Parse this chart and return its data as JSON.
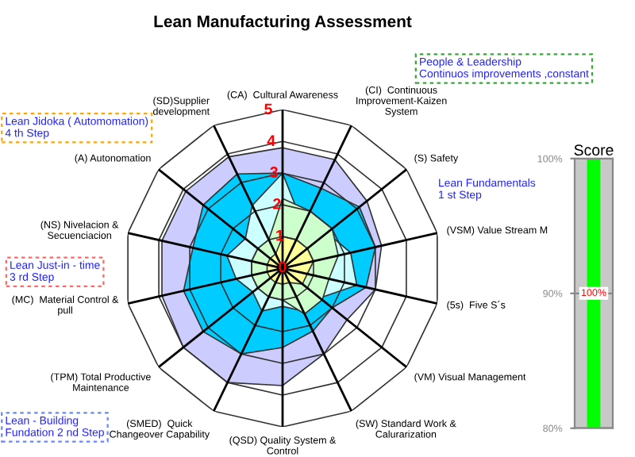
{
  "chart_data": [
    {
      "type": "radar",
      "title": "Lean Manufacturing Assessment",
      "categories": [
        "(CA)  Cultural Awareness",
        "(CI)  Continuous\nImprovement-Kaizen\nSystem",
        "(S) Safety",
        "(VSM) Value Stream M",
        "(5s)  Five S´s",
        "(VM) Visual Management",
        "(SW) Standard Work &\nCalurarization",
        "(QSD) Quality System &\nControl",
        "(SMED)  Quick\nChangeover Capability",
        "(TPM) Total Productive\nMaintenance",
        "(MC)  Material Control &\npull",
        "(NS) Nivelacion &\nSecuenciacion",
        "(A) Autonomation",
        "(SD)Supplier\ndevelopment"
      ],
      "series": [
        {
          "color": "#ccccff",
          "values": [
            3.8,
            3.8,
            3.4,
            3.2,
            3.0,
            2.6,
            3.0,
            3.7,
            4.0,
            4.0,
            3.9,
            3.9,
            3.9,
            3.9
          ]
        },
        {
          "color": "#00ccff",
          "values": [
            3.0,
            2.8,
            3.1,
            3.0,
            2.7,
            2.0,
            2.2,
            2.5,
            3.0,
            3.2,
            3.2,
            2.9,
            3.2,
            3.3
          ]
        },
        {
          "color": "#ccffff",
          "values": [
            3.0,
            1.5,
            1.8,
            2.2,
            2.4,
            1.5,
            1.5,
            1.2,
            1.5,
            1.2,
            1.5,
            1.8,
            1.5,
            2.2
          ]
        },
        {
          "color": "#ccffcc",
          "values": [
            2.2,
            2.0,
            2.0,
            1.8,
            1.5,
            1.6,
            1.6,
            1.0,
            1.0,
            1.0,
            1.0,
            1.0,
            1.0,
            1.0
          ]
        },
        {
          "color": "#ffff99",
          "values": [
            1.0,
            1.0,
            1.0,
            1.0,
            0.8,
            0.8,
            0.5,
            0.5,
            0.5,
            0.5,
            0.5,
            0.5,
            0.5,
            0.5
          ]
        }
      ],
      "ylim": [
        0,
        5
      ],
      "yticks": [
        0,
        1,
        2,
        3,
        4,
        5
      ],
      "grid": true,
      "legend": false,
      "annotations": [
        "People & Leadership\nContinuos improvements ,constant",
        "Lean Fundamentals\n1 st Step",
        "Lean Jidoka ( Automomation)\n4 th Step",
        "Lean Just-in - time\n3 rd Step",
        "Lean - Building\nFundation 2 nd Step"
      ]
    },
    {
      "type": "bar",
      "title": "Score",
      "categories": [
        null
      ],
      "values": [
        100
      ],
      "colors": [
        "#00ff00"
      ],
      "ylim": [
        80,
        100
      ],
      "yticks": [
        {
          "value": 80,
          "label": "80%"
        },
        {
          "value": 90,
          "label": "90%"
        },
        {
          "value": 100,
          "label": "100%"
        }
      ],
      "value_labels": [
        "100%"
      ],
      "legend": false
    }
  ]
}
